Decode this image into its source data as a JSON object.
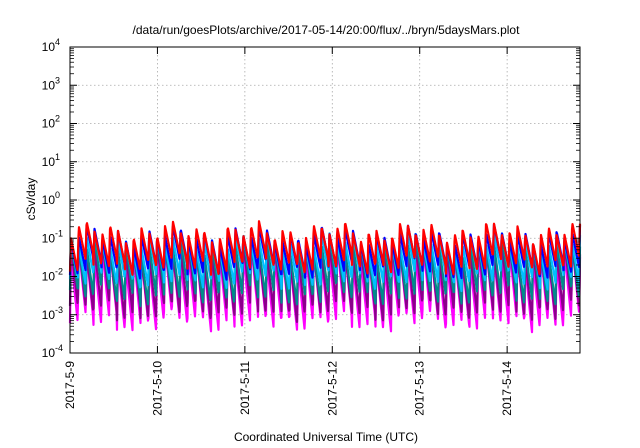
{
  "chart_data": {
    "type": "line",
    "title": "/data/run/goesPlots/archive/2017-05-14/20:00/flux/../bryn/5daysMars.plot",
    "xlabel": "Coordinated Universal Time (UTC)",
    "ylabel": "cSv/day",
    "y_scale": "log",
    "ylim": [
      0.0001,
      10000
    ],
    "y_ticks": [
      {
        "value": 0.0001,
        "base": "10",
        "exp": "-4"
      },
      {
        "value": 0.001,
        "base": "10",
        "exp": "-3"
      },
      {
        "value": 0.01,
        "base": "10",
        "exp": "-2"
      },
      {
        "value": 0.1,
        "base": "10",
        "exp": "-1"
      },
      {
        "value": 1,
        "base": "10",
        "exp": "0"
      },
      {
        "value": 10,
        "base": "10",
        "exp": "1"
      },
      {
        "value": 100,
        "base": "10",
        "exp": "2"
      },
      {
        "value": 1000,
        "base": "10",
        "exp": "3"
      },
      {
        "value": 10000,
        "base": "10",
        "exp": "4"
      }
    ],
    "xlim": [
      "2017-05-09T00:00",
      "2017-05-14T20:00"
    ],
    "x_ticks": [
      "2017-5-9",
      "2017-5-10",
      "2017-5-11",
      "2017-5-12",
      "2017-5-13",
      "2017-5-14"
    ],
    "grid": true,
    "legend": "none",
    "series": [
      {
        "color": "#ff00ff",
        "peak": 0.035,
        "trough": 0.0006
      },
      {
        "color": "#8b008b",
        "peak": 0.05,
        "trough": 0.0012
      },
      {
        "color": "#008b8b",
        "peak": 0.065,
        "trough": 0.003
      },
      {
        "color": "#00bfff",
        "peak": 0.085,
        "trough": 0.008
      },
      {
        "color": "#0000ff",
        "peak": 0.12,
        "trough": 0.015
      },
      {
        "color": "#ff0000",
        "peak": 0.15,
        "trough": 0.02
      }
    ],
    "pulse_period_hours": 2.15
  }
}
